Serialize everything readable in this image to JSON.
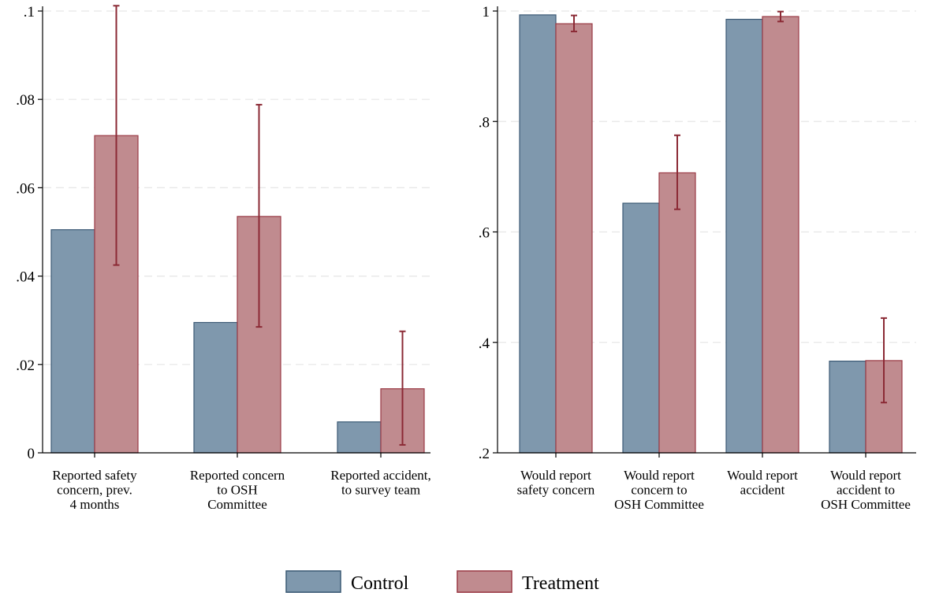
{
  "colors": {
    "control_fill": "#7f98ad",
    "control_stroke": "#3c5a75",
    "treatment_fill": "#c08b8f",
    "treatment_stroke": "#9a3a45",
    "errorbar": "#8b2a35",
    "grid": "#e6e6e6"
  },
  "legend": {
    "control": "Control",
    "treatment": "Treatment"
  },
  "chart_data": [
    {
      "type": "bar",
      "title": "",
      "xlabel": "",
      "ylabel": "",
      "ylim": [
        0,
        0.1
      ],
      "yticks": [
        0,
        0.02,
        0.04,
        0.06,
        0.08,
        0.1
      ],
      "ytick_labels": [
        "0",
        ".02",
        ".04",
        ".06",
        ".08",
        ".1"
      ],
      "grid": true,
      "legend_position": "bottom",
      "categories": [
        [
          "Reported safety",
          "concern, prev.",
          "4 months"
        ],
        [
          "Reported concern",
          "to OSH",
          "Committee"
        ],
        [
          "Reported accident,",
          "to survey team"
        ]
      ],
      "series": [
        {
          "name": "Control",
          "values": [
            0.0505,
            0.0295,
            0.007
          ]
        },
        {
          "name": "Treatment",
          "values": [
            0.0718,
            0.0535,
            0.0145
          ],
          "error_low": [
            0.0425,
            0.0285,
            0.0018
          ],
          "error_high": [
            0.1012,
            0.0788,
            0.0275
          ]
        }
      ]
    },
    {
      "type": "bar",
      "title": "",
      "xlabel": "",
      "ylabel": "",
      "ylim": [
        0.2,
        1.0
      ],
      "yticks": [
        0.2,
        0.4,
        0.6,
        0.8,
        1.0
      ],
      "ytick_labels": [
        ".2",
        ".4",
        ".6",
        ".8",
        "1"
      ],
      "grid": true,
      "legend_position": "bottom",
      "categories": [
        [
          "Would report",
          "safety concern"
        ],
        [
          "Would report",
          "concern to",
          "OSH Committee"
        ],
        [
          "Would report",
          "accident"
        ],
        [
          "Would report",
          "accident to",
          "OSH Committee"
        ]
      ],
      "series": [
        {
          "name": "Control",
          "values": [
            0.993,
            0.652,
            0.985,
            0.366
          ]
        },
        {
          "name": "Treatment",
          "values": [
            0.977,
            0.707,
            0.99,
            0.367
          ],
          "error_low": [
            0.963,
            0.641,
            0.981,
            0.291
          ],
          "error_high": [
            0.992,
            0.775,
            0.999,
            0.444
          ]
        }
      ]
    }
  ]
}
